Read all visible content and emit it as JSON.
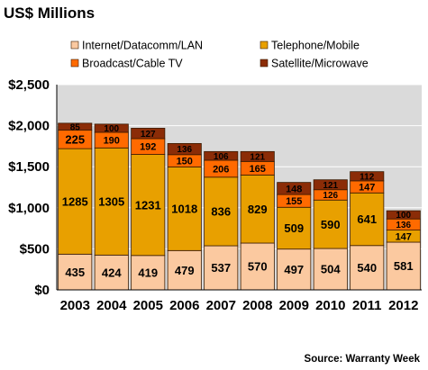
{
  "chart_data": {
    "type": "bar",
    "stacked": true,
    "title": "US$ Millions",
    "source": "Source: Warranty Week",
    "categories": [
      "2003",
      "2004",
      "2005",
      "2006",
      "2007",
      "2008",
      "2009",
      "2010",
      "2011",
      "2012"
    ],
    "series": [
      {
        "name": "Internet/Datacomm/LAN",
        "color": "#FBC9A0",
        "values": [
          435,
          424,
          419,
          479,
          537,
          570,
          497,
          504,
          540,
          581
        ]
      },
      {
        "name": "Telephone/Mobile",
        "color": "#E8A000",
        "values": [
          1285,
          1305,
          1231,
          1018,
          836,
          829,
          509,
          590,
          641,
          147
        ]
      },
      {
        "name": "Broadcast/Cable TV",
        "color": "#FF6A00",
        "values": [
          225,
          190,
          192,
          150,
          206,
          165,
          155,
          126,
          147,
          136
        ]
      },
      {
        "name": "Satellite/Microwave",
        "color": "#8B2C07",
        "values": [
          85,
          100,
          127,
          136,
          106,
          121,
          148,
          121,
          112,
          100
        ]
      }
    ],
    "yticks": [
      "$2,500",
      "$2,000",
      "$1,500",
      "$1,000",
      "$500",
      "$0"
    ],
    "ylim": [
      0,
      2500
    ],
    "grid": true,
    "legend_position": "top"
  }
}
